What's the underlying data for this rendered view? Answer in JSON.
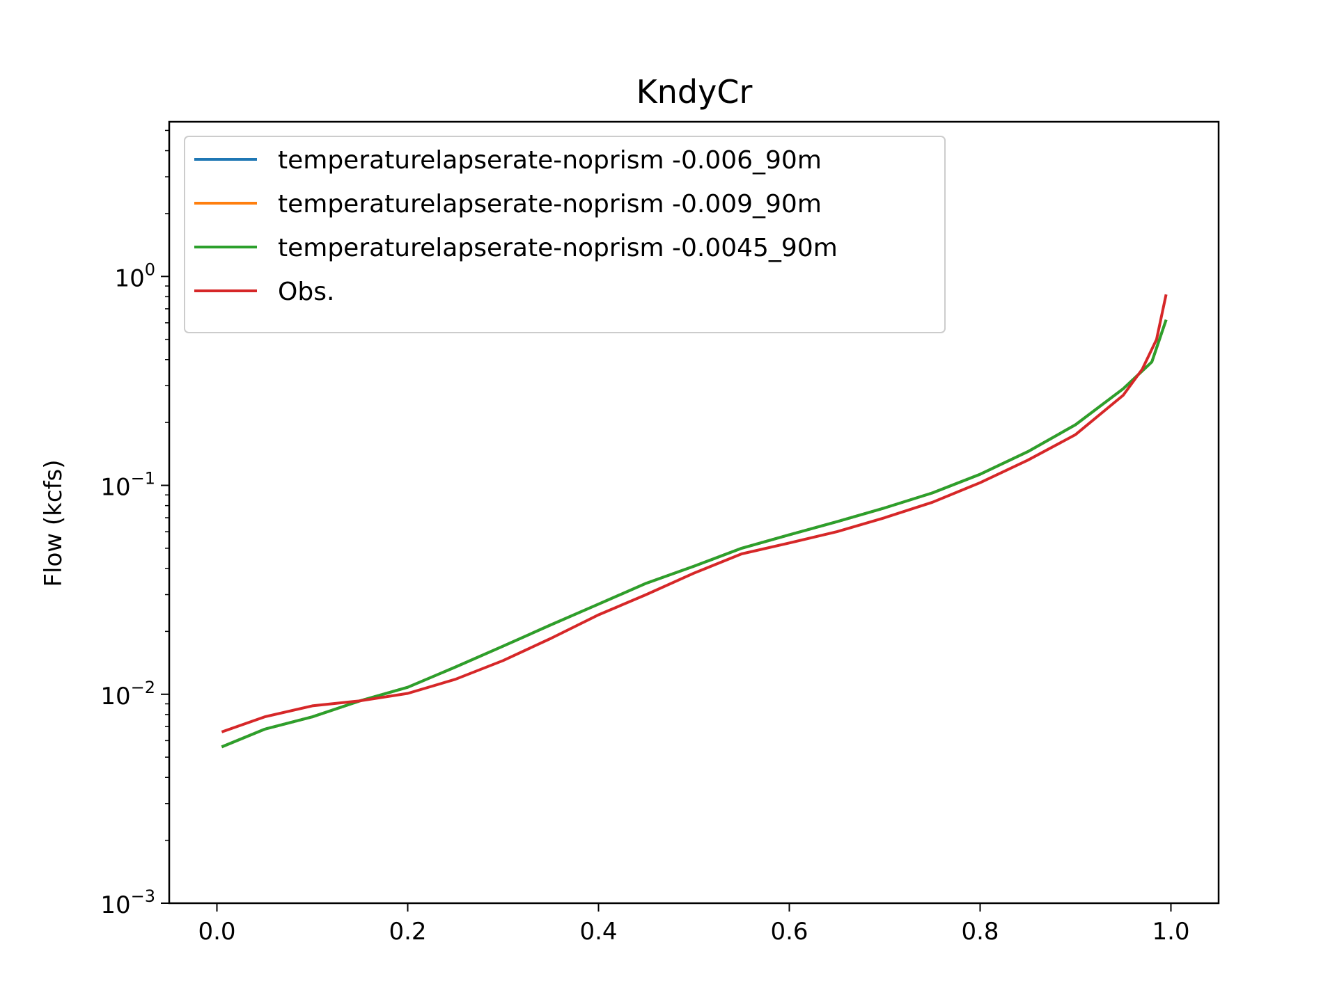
{
  "chart_data": {
    "type": "line",
    "title": "KndyCr",
    "xlabel": "",
    "ylabel": "Flow (kcfs)",
    "yscale": "log",
    "xlim": [
      -0.05,
      1.05
    ],
    "ylim": [
      0.001,
      5.5
    ],
    "xticks": [
      {
        "value": 0.0,
        "label": "0.0"
      },
      {
        "value": 0.2,
        "label": "0.2"
      },
      {
        "value": 0.4,
        "label": "0.4"
      },
      {
        "value": 0.6,
        "label": "0.6"
      },
      {
        "value": 0.8,
        "label": "0.8"
      },
      {
        "value": 1.0,
        "label": "1.0"
      }
    ],
    "yticks": [
      {
        "value": 0.001,
        "base": "10",
        "exp": "−3"
      },
      {
        "value": 0.01,
        "base": "10",
        "exp": "−2"
      },
      {
        "value": 0.1,
        "base": "10",
        "exp": "−1"
      },
      {
        "value": 1,
        "base": "10",
        "exp": "0"
      }
    ],
    "grid": false,
    "legend_position": "top-left",
    "series": [
      {
        "name": "temperaturelapserate-noprism -0.006_90m",
        "color": "#1f77b4",
        "x": [
          0.005,
          0.05,
          0.1,
          0.15,
          0.2,
          0.25,
          0.3,
          0.35,
          0.4,
          0.45,
          0.5,
          0.55,
          0.6,
          0.65,
          0.7,
          0.75,
          0.8,
          0.85,
          0.9,
          0.95,
          0.98,
          0.995
        ],
        "y": [
          0.0056,
          0.0068,
          0.0078,
          0.0093,
          0.0108,
          0.0135,
          0.017,
          0.0215,
          0.027,
          0.034,
          0.041,
          0.05,
          0.058,
          0.067,
          0.078,
          0.092,
          0.113,
          0.145,
          0.195,
          0.29,
          0.39,
          0.62
        ]
      },
      {
        "name": "temperaturelapserate-noprism -0.009_90m",
        "color": "#ff7f0e",
        "x": [
          0.005,
          0.05,
          0.1,
          0.15,
          0.2,
          0.25,
          0.3,
          0.35,
          0.4,
          0.45,
          0.5,
          0.55,
          0.6,
          0.65,
          0.7,
          0.75,
          0.8,
          0.85,
          0.9,
          0.95,
          0.98,
          0.995
        ],
        "y": [
          0.0056,
          0.0068,
          0.0078,
          0.0093,
          0.0108,
          0.0135,
          0.017,
          0.0215,
          0.027,
          0.034,
          0.041,
          0.05,
          0.058,
          0.067,
          0.078,
          0.092,
          0.113,
          0.145,
          0.195,
          0.29,
          0.39,
          0.62
        ]
      },
      {
        "name": "temperaturelapserate-noprism -0.0045_90m",
        "color": "#2ca02c",
        "x": [
          0.005,
          0.05,
          0.1,
          0.15,
          0.2,
          0.25,
          0.3,
          0.35,
          0.4,
          0.45,
          0.5,
          0.55,
          0.6,
          0.65,
          0.7,
          0.75,
          0.8,
          0.85,
          0.9,
          0.95,
          0.98,
          0.995
        ],
        "y": [
          0.0056,
          0.0068,
          0.0078,
          0.0093,
          0.0108,
          0.0135,
          0.017,
          0.0215,
          0.027,
          0.034,
          0.041,
          0.05,
          0.058,
          0.067,
          0.078,
          0.092,
          0.113,
          0.145,
          0.195,
          0.29,
          0.39,
          0.62
        ]
      },
      {
        "name": "Obs.",
        "color": "#d62728",
        "x": [
          0.005,
          0.05,
          0.1,
          0.15,
          0.2,
          0.25,
          0.3,
          0.35,
          0.4,
          0.45,
          0.5,
          0.55,
          0.6,
          0.65,
          0.7,
          0.75,
          0.8,
          0.85,
          0.9,
          0.95,
          0.97,
          0.985,
          0.995
        ],
        "y": [
          0.0066,
          0.0078,
          0.0088,
          0.0093,
          0.0101,
          0.0118,
          0.0145,
          0.0185,
          0.024,
          0.03,
          0.038,
          0.047,
          0.053,
          0.06,
          0.07,
          0.083,
          0.103,
          0.132,
          0.175,
          0.27,
          0.36,
          0.5,
          0.82
        ]
      }
    ]
  }
}
